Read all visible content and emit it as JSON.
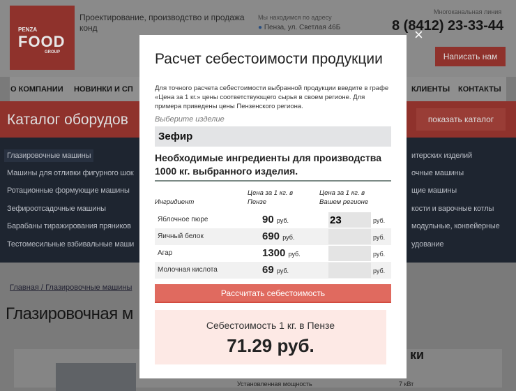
{
  "header": {
    "logo_text": "PENZA FOOD GROUP",
    "logo_top": "PENZA",
    "logo_main": "FOOD",
    "logo_sub": "GROUP",
    "tagline": "Проектирование, производство и продажа конд",
    "address_label": "Мы находимся по адресу",
    "address": "Пенза, ул. Светлая 46Б",
    "phone_label": "Многоканальная линия",
    "phone": "8 (8412) 23-33-44",
    "write_button": "Написать нам"
  },
  "nav": [
    "О КОМПАНИИ",
    "НОВИНКИ И СП",
    "КЛИЕНТЫ",
    "КОНТАКТЫ"
  ],
  "catalog": {
    "title": "Каталог оборудов",
    "show_button": "показать каталог",
    "left_items": [
      "Глазировочные машины",
      "Машины для отливки фигурного шок",
      "Ротационные формующие машины",
      "Зефироотсадочные машины",
      "Барабаны тиражирования пряников",
      "Тестомесильные взбивальные маши"
    ],
    "right_items": [
      "итерских изделий",
      "очные машины",
      "щие машины",
      "кости и варочные котлы",
      "модульные, конвейерные",
      "удование"
    ]
  },
  "breadcrumb": {
    "home": "Главная",
    "sep": "/",
    "current": "Глазировочные машины"
  },
  "page_title": "Глазировочная м",
  "specs": {
    "heading": "ки",
    "row_label": "Установленная мощность",
    "row_value": "7 кВт"
  },
  "modal": {
    "title": "Расчет себестоимости продукции",
    "close_icon": "×",
    "intro": "Для точного расчета себестоимости выбранной продукции введите в графе «Цена за 1 кг.» цены соответствующего сырья в своем регионе. Для примера приведены цены Пензенского региона.",
    "select_label": "Выберите изделие",
    "selected": "Зефир",
    "heading": "Необходимые ингредиенты для производства 1000 кг. выбранного изделия.",
    "columns": [
      "Ингридиент",
      "Цена за 1 кг. в Пензе",
      "Цена за 1 кг. в Вашем регионе"
    ],
    "currency": "руб.",
    "rows": [
      {
        "name": "Яблочное пюре",
        "price": "90",
        "regional": "23"
      },
      {
        "name": "Яичный белок",
        "price": "690",
        "regional": ""
      },
      {
        "name": "Агар",
        "price": "1300",
        "regional": ""
      },
      {
        "name": "Молочная кислота",
        "price": "69",
        "regional": ""
      }
    ],
    "calc_button": "Рассчитать себестоимость",
    "result_label": "Себестоимость 1 кг. в Пензе",
    "result_value": "71.29 руб."
  }
}
